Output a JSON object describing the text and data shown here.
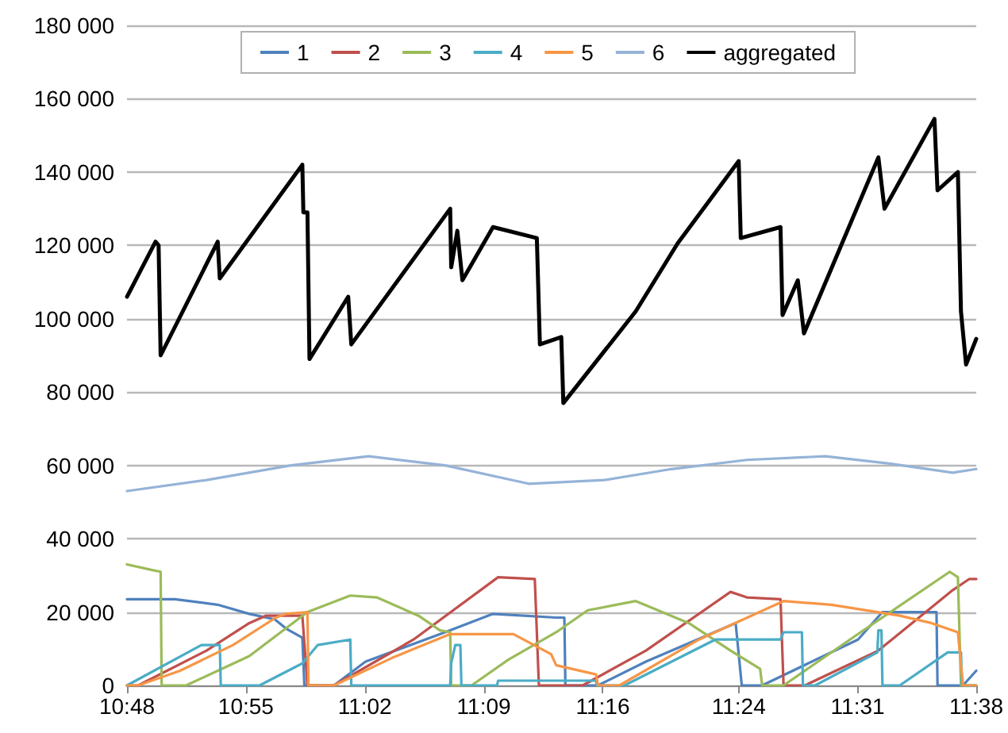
{
  "chart_data": {
    "type": "line",
    "xlim": [
      10.8,
      11.633
    ],
    "xticks": [
      {
        "value": 10.8,
        "label": "10:48"
      },
      {
        "value": 10.9167,
        "label": "10:55"
      },
      {
        "value": 11.0333,
        "label": "11:02"
      },
      {
        "value": 11.15,
        "label": "11:09"
      },
      {
        "value": 11.2667,
        "label": "11:16"
      },
      {
        "value": 11.4,
        "label": "11:24"
      },
      {
        "value": 11.5167,
        "label": "11:31"
      },
      {
        "value": 11.633,
        "label": "11:38"
      }
    ],
    "ylim": [
      0,
      180000
    ],
    "yticks": [
      0,
      {
        "value": 20000,
        "label": "20 000"
      },
      {
        "value": 40000,
        "label": "40 000"
      },
      {
        "value": 60000,
        "label": "60 000"
      },
      {
        "value": 80000,
        "label": "80 000"
      },
      {
        "value": 100000,
        "label": "100 000"
      },
      {
        "value": 120000,
        "label": "120 000"
      },
      {
        "value": 140000,
        "label": "140 000"
      },
      {
        "value": 160000,
        "label": "160 000"
      },
      {
        "value": 180000,
        "label": "180 000"
      }
    ],
    "grid": "y",
    "legend": "top",
    "line_style": "solid",
    "series": [
      {
        "name": "1",
        "color": "#4f81bd",
        "x": [
          10.8,
          10.847,
          10.889,
          10.92,
          10.945,
          10.956,
          10.972,
          10.974,
          11.003,
          11.034,
          11.112,
          11.159,
          11.221,
          11.229,
          11.23,
          11.262,
          11.309,
          11.397,
          11.403,
          11.423,
          11.517,
          11.541,
          11.594,
          11.595,
          11.62,
          11.633
        ],
        "values": [
          23500,
          23500,
          22000,
          19500,
          18000,
          15500,
          13000,
          0,
          0,
          6500,
          14500,
          19500,
          18500,
          18500,
          0,
          0,
          6500,
          17000,
          0,
          0,
          12500,
          20000,
          20000,
          0,
          0,
          4000
        ]
      },
      {
        "name": "2",
        "color": "#c0504d",
        "x": [
          10.8,
          10.811,
          10.878,
          10.92,
          10.936,
          10.972,
          10.977,
          11.003,
          11.081,
          11.164,
          11.2,
          11.204,
          11.247,
          11.309,
          11.392,
          11.408,
          11.441,
          11.444,
          11.465,
          11.537,
          11.61,
          11.626,
          11.633
        ],
        "values": [
          0,
          0,
          9500,
          17000,
          19000,
          19000,
          0,
          0,
          12500,
          29500,
          29000,
          0,
          0,
          9500,
          25500,
          24000,
          23500,
          0,
          0,
          9500,
          26000,
          29000,
          29000
        ]
      },
      {
        "name": "3",
        "color": "#9bbb59",
        "x": [
          10.8,
          10.824,
          10.833,
          10.834,
          10.858,
          10.92,
          10.977,
          11.019,
          11.045,
          11.086,
          11.107,
          11.117,
          11.118,
          11.138,
          11.174,
          11.221,
          11.252,
          11.299,
          11.351,
          11.392,
          11.421,
          11.423,
          11.444,
          11.517,
          11.607,
          11.615,
          11.618,
          11.633
        ],
        "values": [
          33000,
          31500,
          31000,
          0,
          0,
          8000,
          20000,
          24500,
          24000,
          19000,
          15000,
          14500,
          0,
          0,
          7000,
          14500,
          20500,
          23000,
          17000,
          9500,
          4500,
          0,
          0,
          14000,
          31000,
          29500,
          0,
          0
        ]
      },
      {
        "name": "4",
        "color": "#4bacc6",
        "x": [
          10.8,
          10.873,
          10.891,
          10.892,
          10.93,
          10.972,
          10.987,
          11.019,
          11.02,
          11.117,
          11.118,
          11.122,
          11.127,
          11.128,
          11.163,
          11.164,
          11.26,
          11.261,
          11.288,
          11.377,
          11.441,
          11.444,
          11.462,
          11.463,
          11.475,
          11.536,
          11.537,
          11.54,
          11.541,
          11.558,
          11.605,
          11.618,
          11.619,
          11.633
        ],
        "values": [
          0,
          11000,
          11000,
          0,
          0,
          6000,
          11000,
          12500,
          0,
          0,
          6000,
          11000,
          11000,
          0,
          0,
          1300,
          1300,
          0,
          0,
          12500,
          12500,
          14500,
          14500,
          0,
          0,
          9000,
          15000,
          15000,
          0,
          0,
          9000,
          9000,
          0,
          0
        ]
      },
      {
        "name": "5",
        "color": "#f79646",
        "x": [
          10.8,
          10.811,
          10.852,
          10.904,
          10.946,
          10.956,
          10.977,
          10.978,
          11.003,
          11.06,
          11.117,
          11.179,
          11.216,
          11.221,
          11.26,
          11.262,
          11.283,
          11.361,
          11.444,
          11.491,
          11.558,
          11.589,
          11.615,
          11.62,
          11.633
        ],
        "values": [
          0,
          0,
          4000,
          11000,
          18500,
          19500,
          20000,
          0,
          0,
          7500,
          14000,
          14000,
          8500,
          5500,
          3000,
          0,
          0,
          12500,
          23000,
          22000,
          19000,
          17000,
          14500,
          0,
          0
        ]
      },
      {
        "name": "6",
        "color": "#95b3d7",
        "x": [
          10.8,
          10.878,
          10.961,
          11.037,
          11.112,
          11.194,
          11.268,
          11.334,
          11.408,
          11.485,
          11.548,
          11.61,
          11.633
        ],
        "values": [
          53000,
          56000,
          60000,
          62500,
          60000,
          55000,
          56000,
          59000,
          61500,
          62500,
          60500,
          58000,
          59000
        ]
      },
      {
        "name": "aggregated",
        "color": "#000000",
        "x": [
          10.8,
          10.828,
          10.831,
          10.833,
          10.889,
          10.891,
          10.972,
          10.973,
          10.977,
          10.979,
          11.017,
          11.02,
          11.117,
          11.118,
          11.124,
          11.129,
          11.159,
          11.202,
          11.205,
          11.226,
          11.228,
          11.299,
          11.34,
          11.4,
          11.402,
          11.441,
          11.443,
          11.458,
          11.464,
          11.537,
          11.543,
          11.592,
          11.595,
          11.615,
          11.618,
          11.623,
          11.633
        ],
        "values": [
          106000,
          121000,
          120000,
          90000,
          121000,
          111000,
          142000,
          129000,
          129000,
          89000,
          106000,
          93000,
          130000,
          114000,
          124000,
          110500,
          125000,
          122000,
          93000,
          95000,
          77000,
          102000,
          120500,
          143000,
          122000,
          125000,
          101000,
          110500,
          96000,
          144000,
          130000,
          154500,
          135000,
          140000,
          102000,
          87500,
          94500
        ]
      }
    ]
  }
}
